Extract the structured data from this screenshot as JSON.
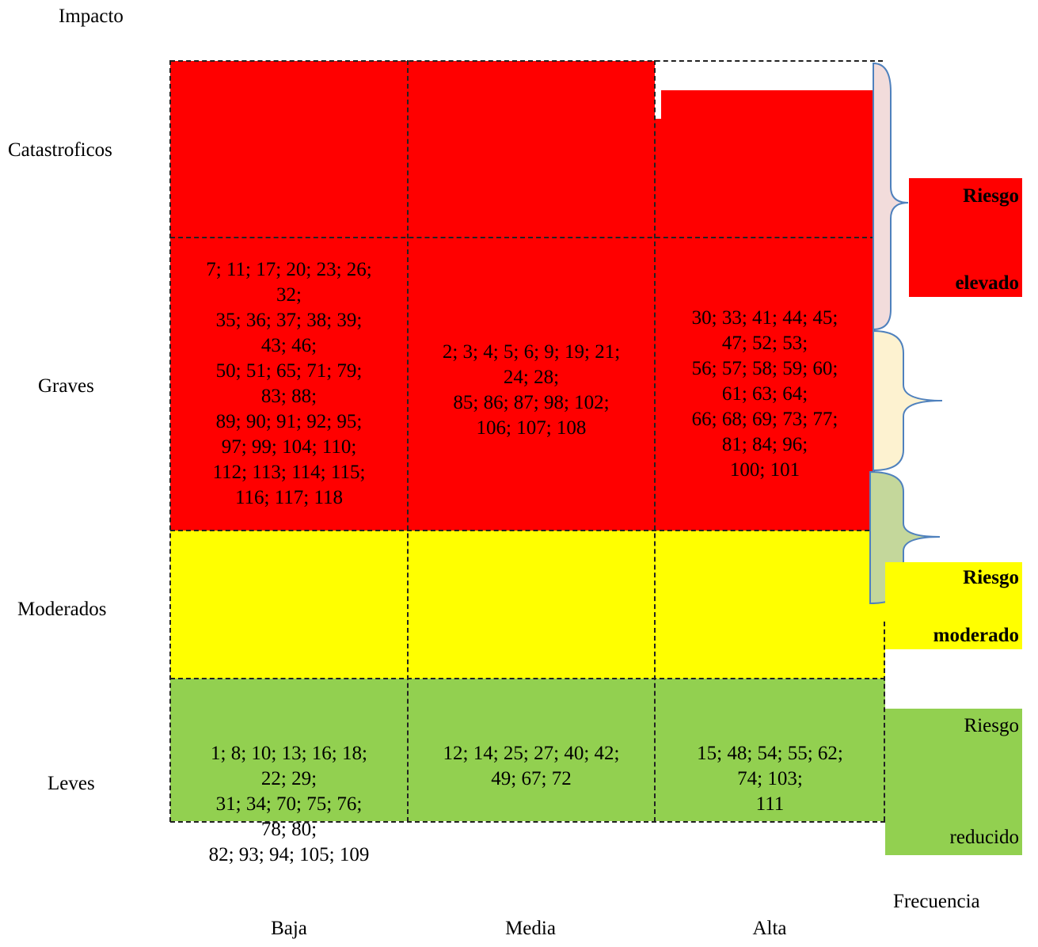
{
  "axis": {
    "y_title": "Impacto",
    "x_title": "Frecuencia"
  },
  "rows": [
    "Catastroficos",
    "Graves",
    "Moderados",
    "Leves"
  ],
  "columns": [
    "Baja",
    "Media",
    "Alta"
  ],
  "cells": {
    "graves": {
      "baja": "7; 11; 17; 20; 23; 26;\n32;\n35; 36; 37; 38; 39;\n43; 46;\n50;  51; 65; 71; 79;\n83; 88;\n89; 90; 91; 92; 95;\n97; 99; 104; 110;\n112; 113; 114; 115;\n116; 117; 118",
      "media": "2; 3; 4; 5; 6; 9; 19; 21;\n24; 28;\n85; 86; 87; 98; 102;\n106; 107; 108",
      "alta": "30; 33; 41; 44; 45;\n47; 52; 53;\n56; 57; 58; 59; 60;\n61; 63; 64;\n66; 68; 69; 73; 77;\n81; 84; 96;\n100; 101"
    },
    "leves": {
      "baja": "1; 8; 10; 13; 16; 18;\n22; 29;\n31; 34; 70; 75; 76;\n78; 80;\n82; 93; 94; 105; 109",
      "media": "12; 14; 25; 27; 40; 42;\n49; 67; 72",
      "alta": "15; 48; 54; 55; 62;\n74; 103;\n111"
    }
  },
  "legend": {
    "elevado": {
      "line1": "Riesgo",
      "line2": "elevado",
      "color": "#ff0000"
    },
    "moderado": {
      "line1": "Riesgo",
      "line2": "moderado",
      "color": "#ffff00"
    },
    "reducido": {
      "line1": "Riesgo",
      "line2": "reducido",
      "color": "#92d050"
    }
  },
  "colors": {
    "high": "#ff0000",
    "moderate": "#ffff00",
    "low": "#92d050",
    "brace_pink": "#f2dcdb",
    "brace_cream": "#fdf2d0",
    "brace_olive": "#c4d79b",
    "brace_stroke": "#4f81bd"
  }
}
